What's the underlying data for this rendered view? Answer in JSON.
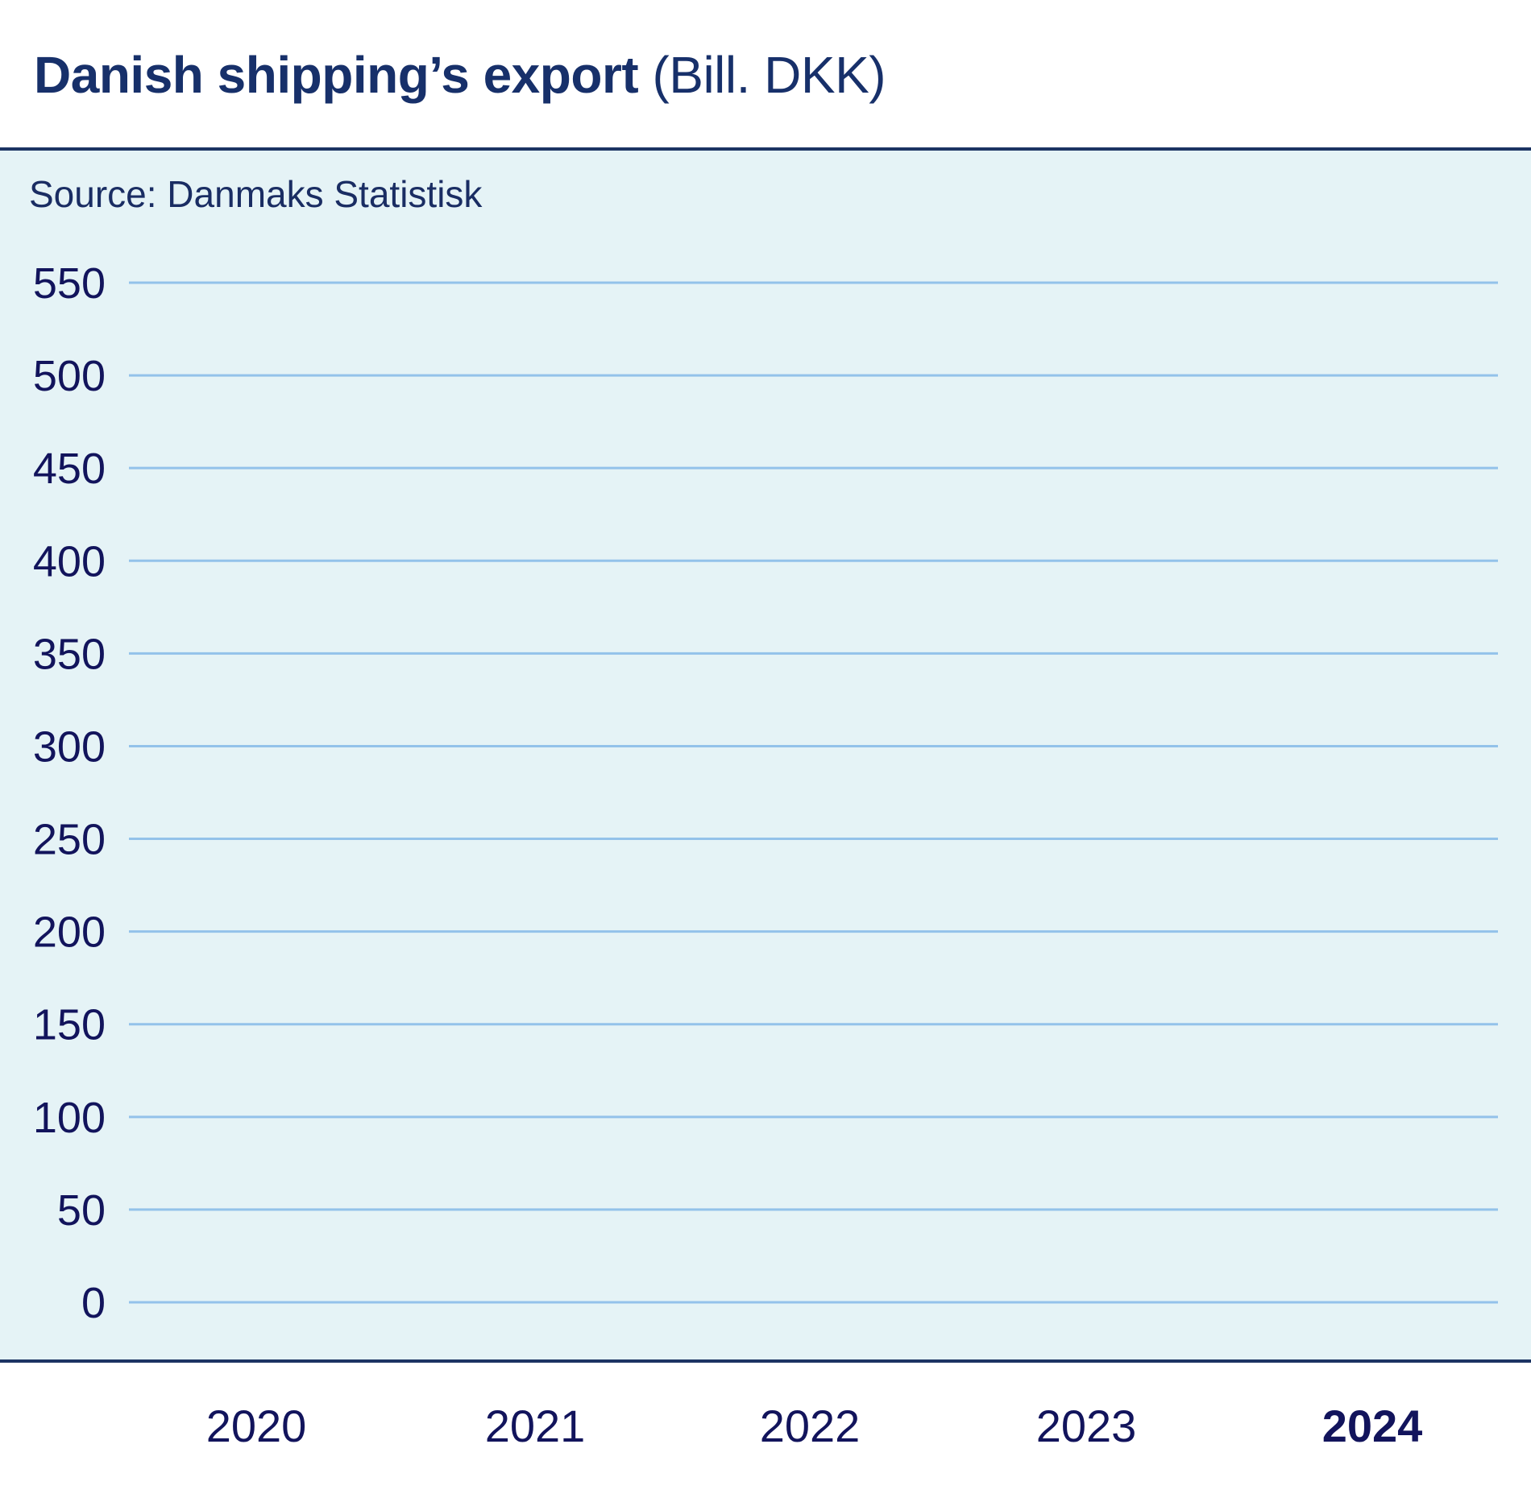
{
  "chart_data": {
    "type": "bar",
    "title": "Danish shipping’s export",
    "title_unit": "(Bill. DKK)",
    "source": "Source: Danmaks Statistisk",
    "categories": [
      "2020",
      "2021",
      "2022",
      "2023",
      "2024"
    ],
    "highlighted_category": "2024",
    "values": [
      null,
      null,
      null,
      null,
      null
    ],
    "xlabel": "",
    "ylabel": "",
    "ylim": [
      0,
      550
    ],
    "yticks": [
      0,
      50,
      100,
      150,
      200,
      250,
      300,
      350,
      400,
      450,
      500,
      550
    ],
    "grid": true,
    "colors": {
      "title": "#17306a",
      "text": "#12145c",
      "gridline": "#93c2ea",
      "panel": "#e5f3f6",
      "rule": "#1c3463"
    }
  }
}
